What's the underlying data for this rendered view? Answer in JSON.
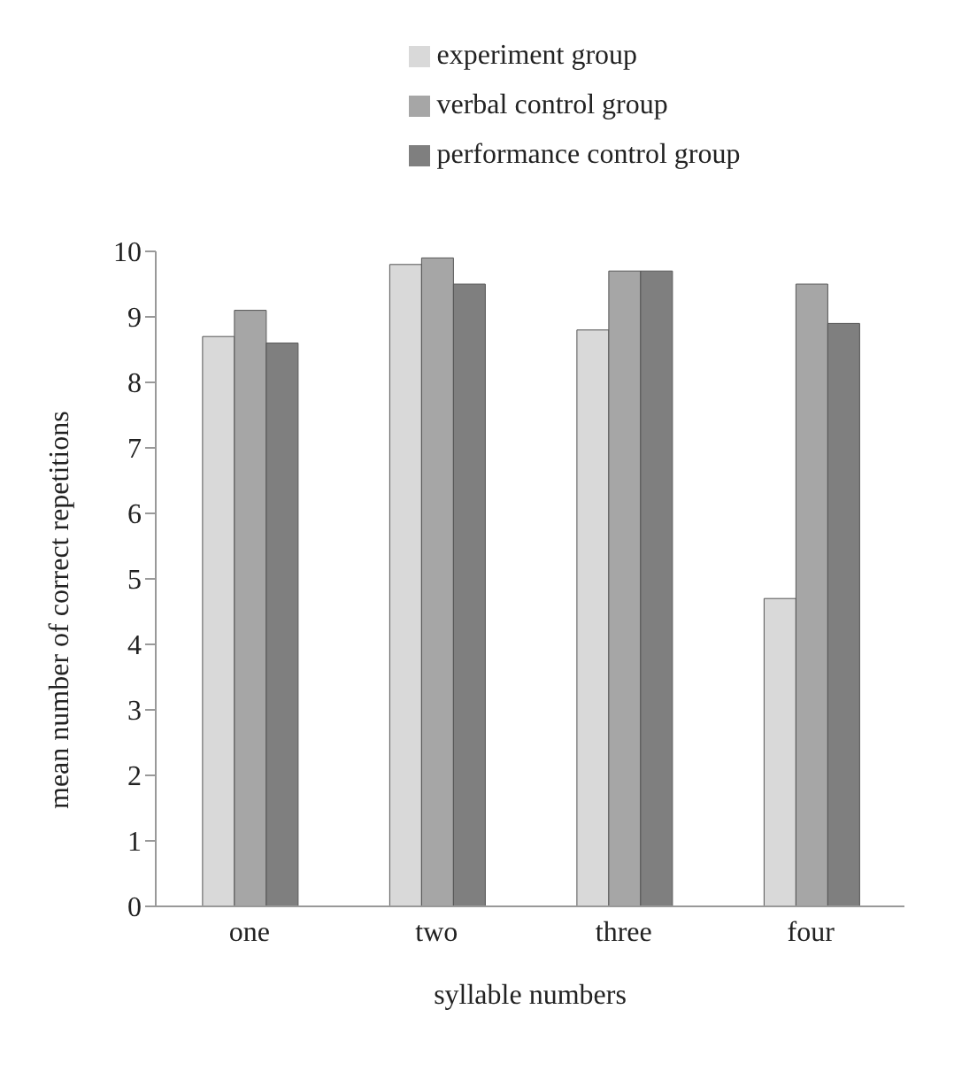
{
  "chart_data": {
    "type": "bar",
    "categories": [
      "one",
      "two",
      "three",
      "four"
    ],
    "series": [
      {
        "name": "experiment group",
        "color": "#d9d9d9",
        "values": [
          8.7,
          9.8,
          8.8,
          4.7
        ]
      },
      {
        "name": "verbal control group",
        "color": "#a6a6a6",
        "values": [
          9.1,
          9.9,
          9.7,
          9.5
        ]
      },
      {
        "name": "performance control group",
        "color": "#7f7f7f",
        "values": [
          8.6,
          9.5,
          9.7,
          8.9
        ]
      }
    ],
    "xlabel": "syllable numbers",
    "ylabel": "mean number of correct repetitions",
    "ylim": [
      0,
      10
    ],
    "yticks": [
      0,
      1,
      2,
      3,
      4,
      5,
      6,
      7,
      8,
      9,
      10
    ],
    "grid": false,
    "legend": "top"
  }
}
